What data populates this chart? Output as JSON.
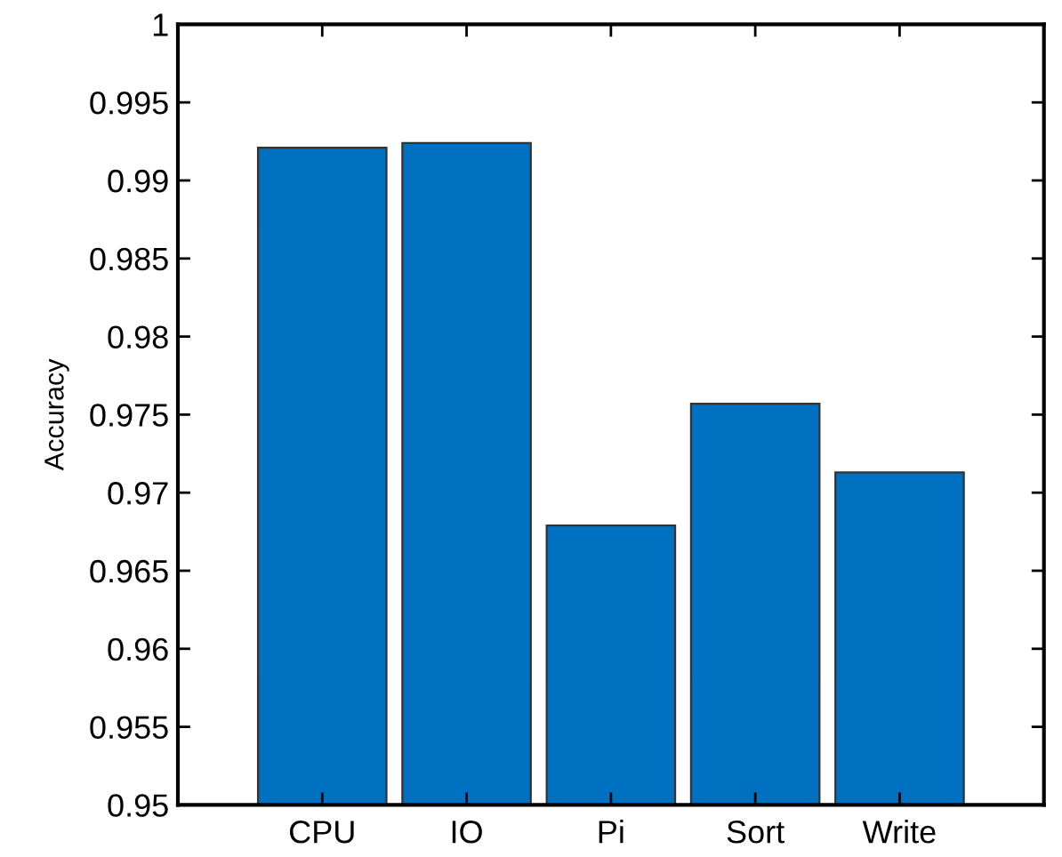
{
  "chart_data": {
    "type": "bar",
    "ylabel": "Accuracy",
    "categories": [
      "CPU",
      "IO",
      "Pi",
      "Sort",
      "Write"
    ],
    "values": [
      0.9921,
      0.9924,
      0.9679,
      0.9757,
      0.9713
    ],
    "color": "#0070c0",
    "ylim": [
      0.95,
      1
    ],
    "yticks": [
      0.95,
      0.955,
      0.96,
      0.965,
      0.97,
      0.975,
      0.98,
      0.985,
      0.99,
      0.995,
      1
    ]
  }
}
